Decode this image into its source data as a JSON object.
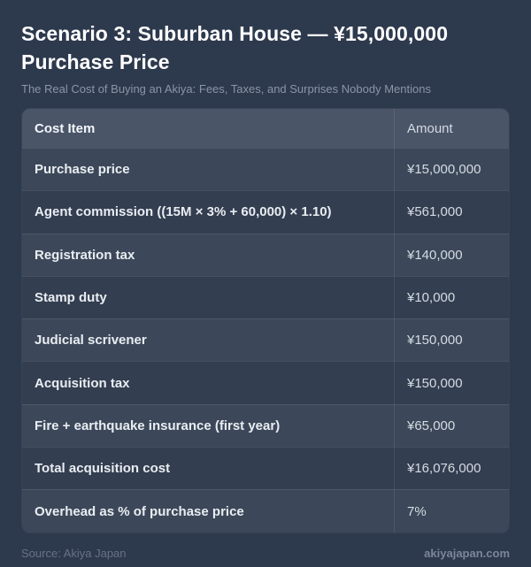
{
  "page": {
    "title": "Scenario 3: Suburban House — ¥15,000,000 Purchase Price",
    "subtitle": "The Real Cost of Buying an Akiya: Fees, Taxes, and Surprises Nobody Mentions"
  },
  "table": {
    "headers": {
      "item": "Cost Item",
      "amount": "Amount"
    },
    "rows": [
      {
        "item": "Purchase price",
        "amount": "¥15,000,000"
      },
      {
        "item": "Agent commission ((15M × 3% + 60,000) × 1.10)",
        "amount": "¥561,000"
      },
      {
        "item": "Registration tax",
        "amount": "¥140,000"
      },
      {
        "item": "Stamp duty",
        "amount": "¥10,000"
      },
      {
        "item": "Judicial scrivener",
        "amount": "¥150,000"
      },
      {
        "item": "Acquisition tax",
        "amount": "¥150,000"
      },
      {
        "item": "Fire + earthquake insurance (first year)",
        "amount": "¥65,000"
      },
      {
        "item": "Total acquisition cost",
        "amount": "¥16,076,000"
      },
      {
        "item": "Overhead as % of purchase price",
        "amount": "7%"
      }
    ]
  },
  "footer": {
    "source": "Source: Akiya Japan",
    "site": "akiyajapan.com"
  },
  "colors": {
    "page_bg": "#2d394d",
    "header_bg": "#4a5568",
    "row_light": "#3c4859",
    "row_dark": "#333e50",
    "title_text": "#ffffff",
    "subtitle_text": "#8b95a6"
  },
  "chart_data": {
    "type": "table",
    "title": "Scenario 3: Suburban House — ¥15,000,000 Purchase Price",
    "subtitle": "The Real Cost of Buying an Akiya: Fees, Taxes, and Surprises Nobody Mentions",
    "columns": [
      "Cost Item",
      "Amount"
    ],
    "categories": [
      "Purchase price",
      "Agent commission ((15M × 3% + 60,000) × 1.10)",
      "Registration tax",
      "Stamp duty",
      "Judicial scrivener",
      "Acquisition tax",
      "Fire + earthquake insurance (first year)",
      "Total acquisition cost",
      "Overhead as % of purchase price"
    ],
    "values": [
      15000000,
      561000,
      140000,
      10000,
      150000,
      150000,
      65000,
      16076000,
      "7%"
    ],
    "currency": "JPY",
    "source": "Akiya Japan"
  }
}
